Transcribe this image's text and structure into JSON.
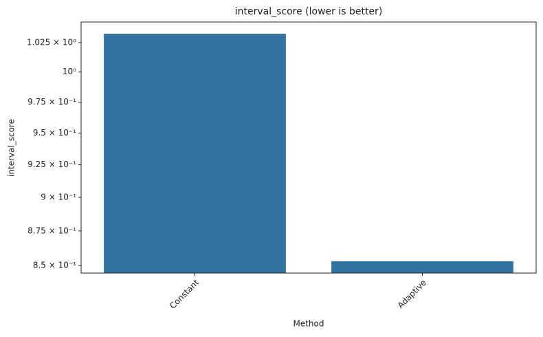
{
  "chart_data": {
    "type": "bar",
    "title": "interval_score (lower is better)",
    "x_label": "Method",
    "y_label": "interval_score",
    "categories": [
      "Constant",
      "Adaptive"
    ],
    "values": [
      1.0327,
      0.853
    ],
    "color": "#3274a1",
    "y_scale": "log",
    "ylim": [
      0.8446,
      1.0429
    ],
    "yticks": [
      {
        "value": 0.85,
        "label": "8.5 × 10⁻¹"
      },
      {
        "value": 0.875,
        "label": "8.75 × 10⁻¹"
      },
      {
        "value": 0.9,
        "label": "9 × 10⁻¹"
      },
      {
        "value": 0.925,
        "label": "9.25 × 10⁻¹"
      },
      {
        "value": 0.95,
        "label": "9.5 × 10⁻¹"
      },
      {
        "value": 0.975,
        "label": "9.75 × 10⁻¹"
      },
      {
        "value": 1,
        "label": "10⁰"
      },
      {
        "value": 1.025,
        "label": "1.025 × 10⁰"
      }
    ],
    "grid": false,
    "x_label_rotation": -45
  }
}
